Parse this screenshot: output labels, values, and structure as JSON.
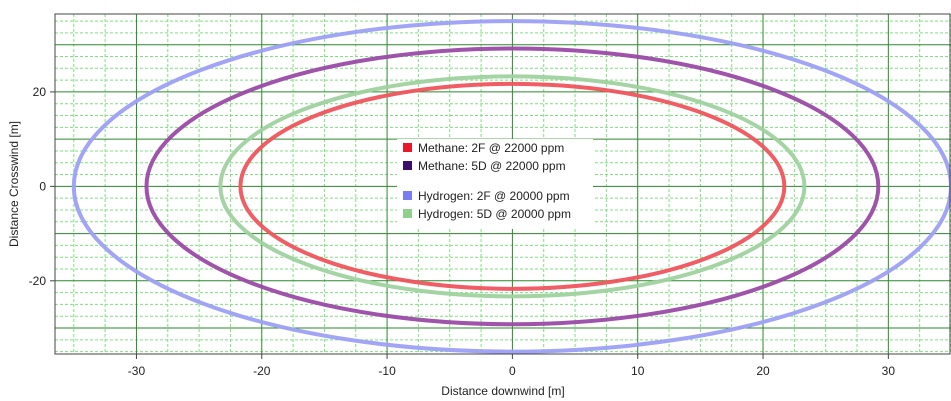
{
  "chart_data": {
    "type": "line",
    "title": "",
    "xlabel": "Distance downwind [m]",
    "ylabel": "Distance Crosswind [m]",
    "xlim": [
      -36.5,
      35
    ],
    "ylim": [
      -35.5,
      36.5
    ],
    "xticks": [
      -30,
      -20,
      -10,
      0,
      10,
      20,
      30
    ],
    "yticks": [
      -20,
      0,
      20
    ],
    "xtick_labels": [
      "-30",
      "-20",
      "-10",
      "0",
      "10",
      "20",
      "30"
    ],
    "ytick_labels": [
      "-20",
      "0",
      "20"
    ],
    "grid": true,
    "grid_color": "#7fe07f",
    "major_grid_color": "#2a8a2a",
    "legend_position": "center",
    "series": [
      {
        "name": "Methane: 2F @ 22000 ppm",
        "shape": "ellipse",
        "center": [
          0,
          0
        ],
        "x_radius": 21.7,
        "y_radius": 21.7,
        "color": "#f0545c"
      },
      {
        "name": "Methane: 5D @ 22000 ppm",
        "shape": "ellipse",
        "center": [
          0,
          0
        ],
        "x_radius": 29.2,
        "y_radius": 29.2,
        "color": "#9b4aa6"
      },
      {
        "name": "Hydrogen: 2F @ 20000 ppm",
        "shape": "ellipse",
        "center": [
          0,
          0
        ],
        "x_radius": 35.0,
        "y_radius": 35.0,
        "color": "#9d9ff5"
      },
      {
        "name": "Hydrogen: 5D @ 20000 ppm",
        "shape": "ellipse",
        "center": [
          0,
          0
        ],
        "x_radius": 23.3,
        "y_radius": 23.3,
        "color": "#9fd19f"
      }
    ],
    "legend": [
      {
        "label": "Methane: 2F @ 22000 ppm",
        "swatch_color": "#e8182a"
      },
      {
        "label": "Methane: 5D @ 22000 ppm",
        "swatch_color": "#3a0d6e"
      },
      {
        "label": "Hydrogen: 2F @ 20000 ppm",
        "swatch_color": "#7a7cf2"
      },
      {
        "label": "Hydrogen: 5D @ 20000 ppm",
        "swatch_color": "#8fd08f"
      }
    ]
  }
}
